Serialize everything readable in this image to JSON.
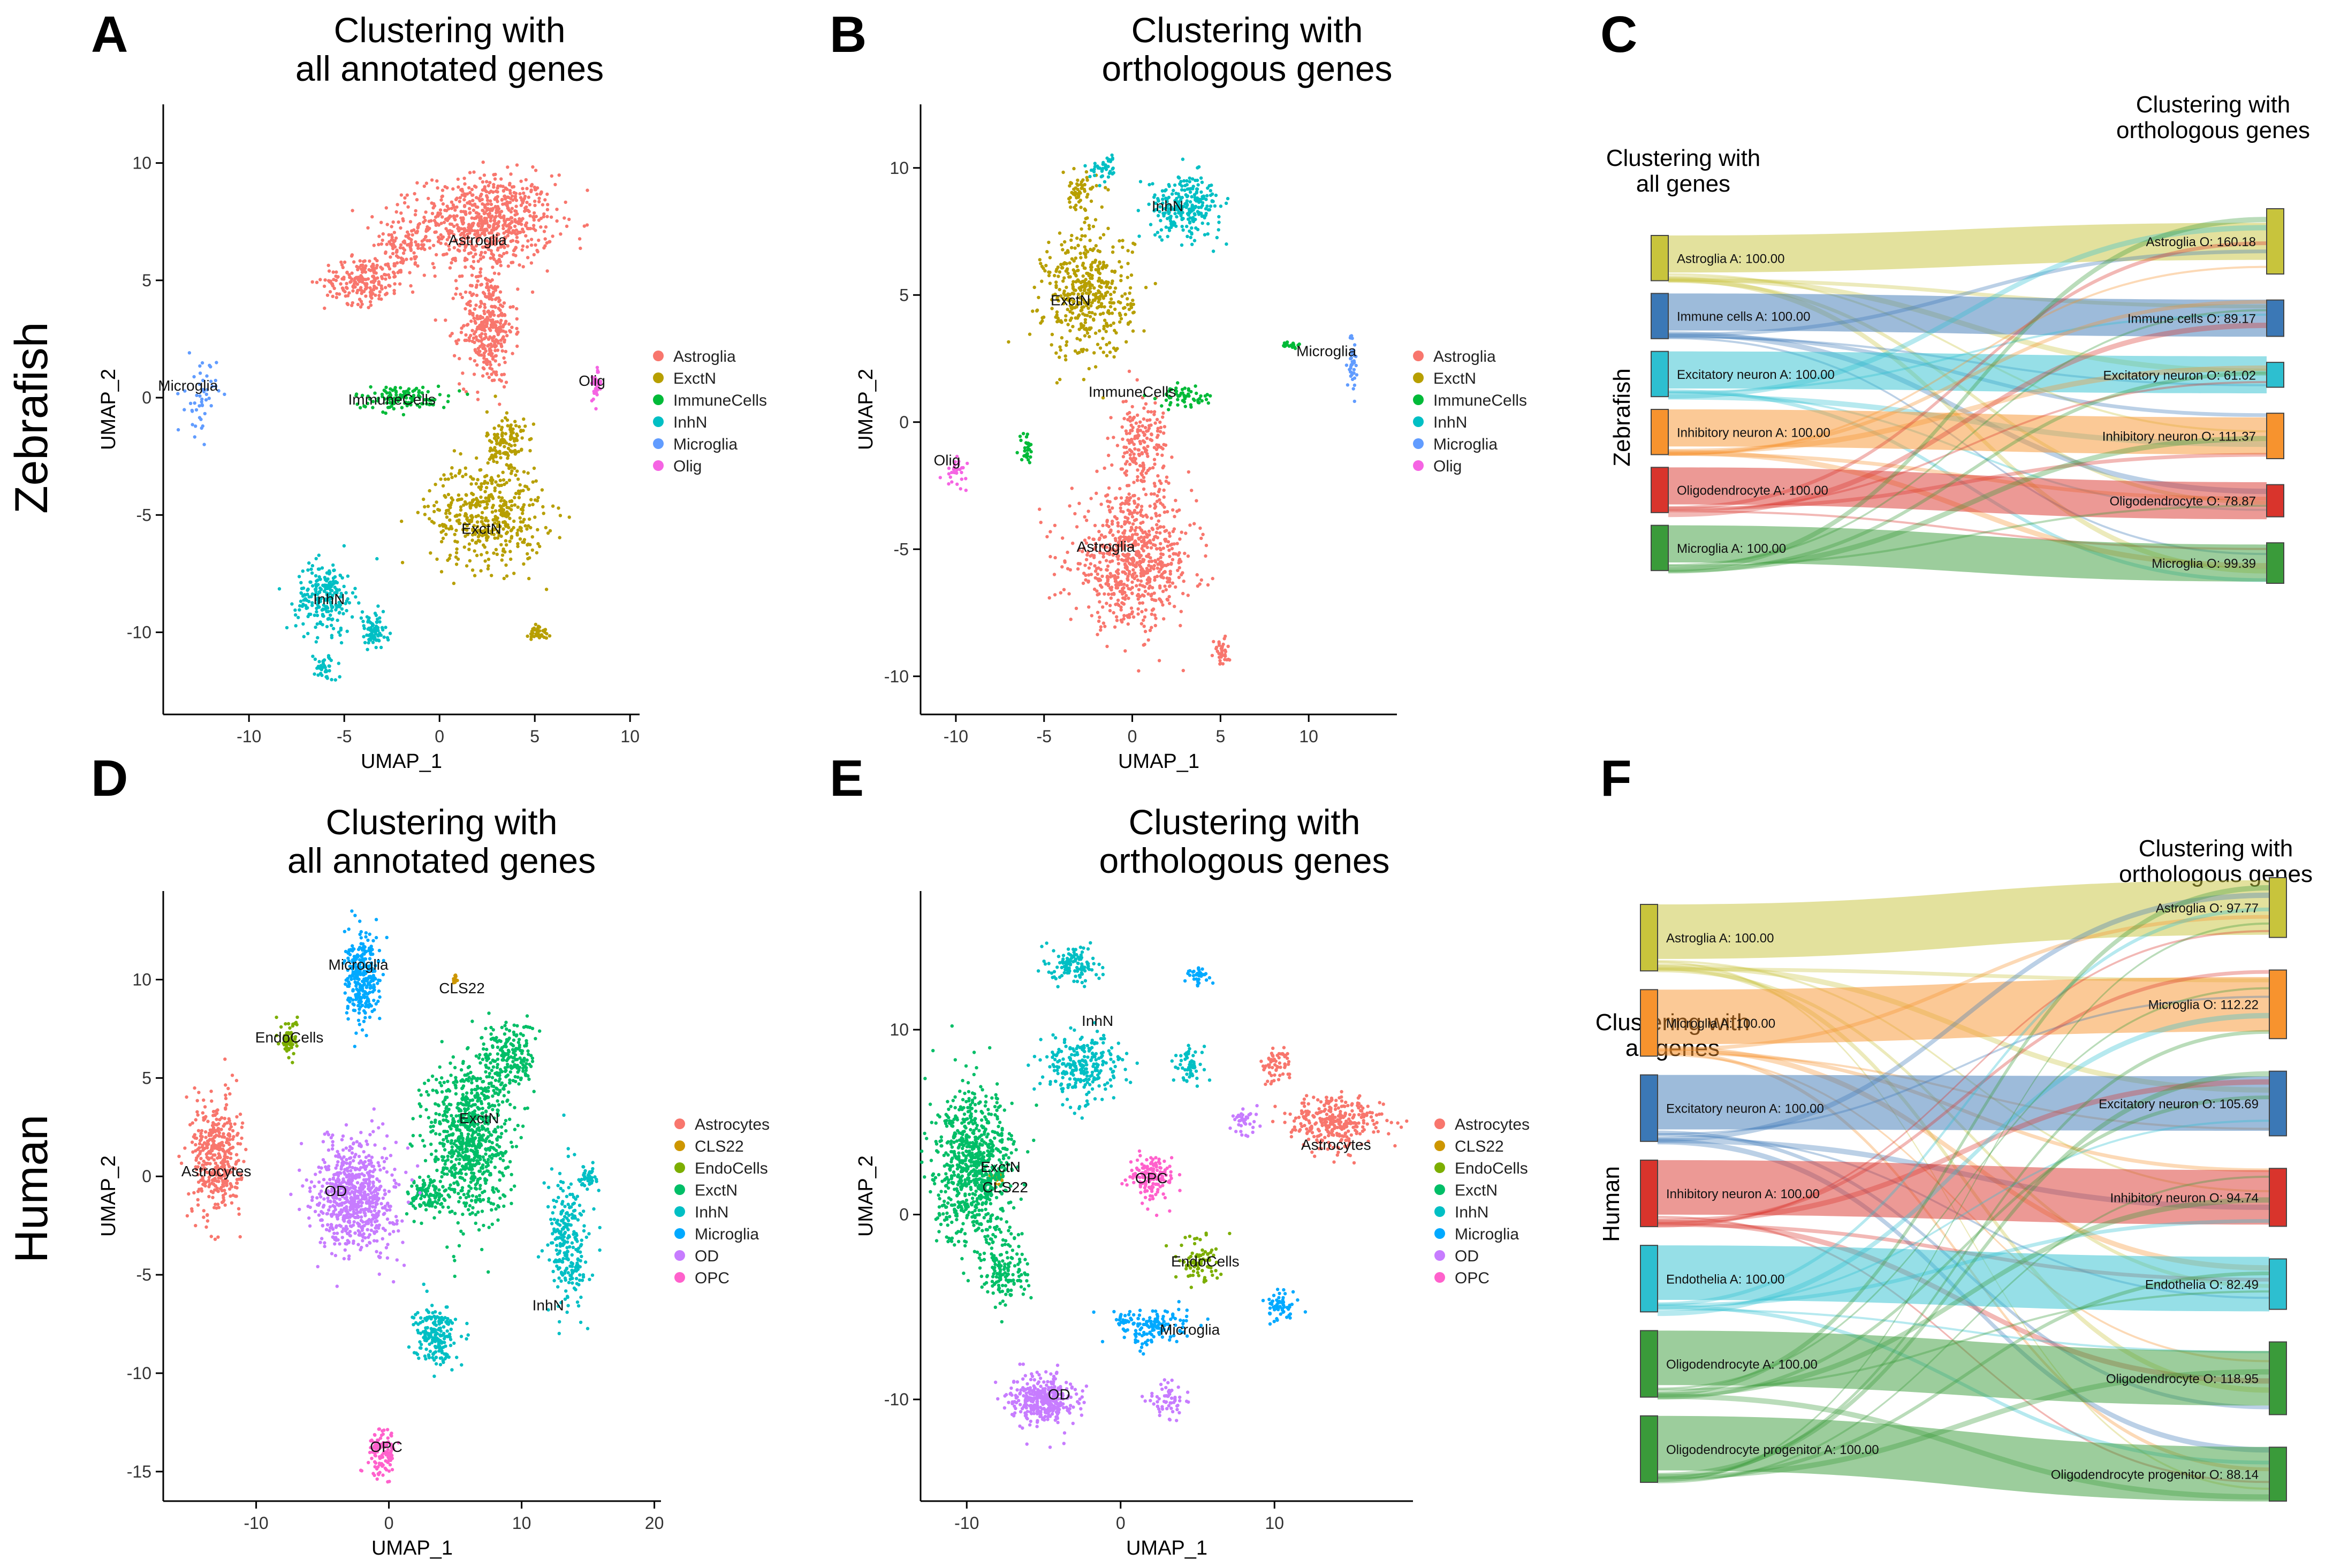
{
  "row_labels": [
    "Zebrafish",
    "Human"
  ],
  "panels": [
    {
      "letter": "A",
      "title": [
        "Clustering with",
        "all annotated genes"
      ]
    },
    {
      "letter": "B",
      "title": [
        "Clustering with",
        "orthologous genes"
      ]
    },
    {
      "letter": "C",
      "title": []
    },
    {
      "letter": "D",
      "title": [
        "Clustering with",
        "all annotated genes"
      ]
    },
    {
      "letter": "E",
      "title": [
        "Clustering with",
        "orthologous genes"
      ]
    },
    {
      "letter": "F",
      "title": []
    }
  ],
  "colors": {
    "Astroglia": "#F8766D",
    "ExctN": "#B79F00",
    "ImmuneCells": "#00BA38",
    "InhN": "#00BFC4",
    "Microglia": "#619CFF",
    "Olig": "#F564E3",
    "Astrocytes": "#F8766D",
    "CLS22": "#CD9600",
    "EndoCells": "#7CAE00",
    "ExctN_h": "#00BE67",
    "InhN_h": "#00BFC4",
    "Microglia_h": "#00A9FF",
    "OD": "#C77CFF",
    "OPC": "#FF61CC"
  },
  "chart_data": [
    {
      "id": "A",
      "type": "scatter",
      "xlabel": "UMAP_1",
      "ylabel": "UMAP_2",
      "xlim": [
        -14.5,
        10.5
      ],
      "ylim": [
        -13.5,
        12.5
      ],
      "xticks": [
        -10,
        -5,
        0,
        5,
        10
      ],
      "yticks": [
        -10,
        -5,
        0,
        5,
        10
      ],
      "legend": [
        "Astroglia",
        "ExctN",
        "ImmuneCells",
        "InhN",
        "Microglia",
        "Olig"
      ],
      "legend_colors": [
        "#F8766D",
        "#B79F00",
        "#00BA38",
        "#00BFC4",
        "#619CFF",
        "#F564E3"
      ],
      "clusters": [
        {
          "name": "Astroglia",
          "color": "#F8766D",
          "blobs": [
            [
              2.5,
              7.5,
              3.5,
              2.0,
              700
            ],
            [
              2.5,
              3.0,
              1.4,
              2.5,
              350
            ],
            [
              -4.0,
              5.0,
              2.0,
              1.0,
              200
            ],
            [
              -2.0,
              6.5,
              1.5,
              1.5,
              120
            ]
          ]
        },
        {
          "name": "ExctN",
          "color": "#B79F00",
          "blobs": [
            [
              2.5,
              -5.0,
              3.0,
              2.2,
              450
            ],
            [
              3.5,
              -2.0,
              1.0,
              1.5,
              120
            ],
            [
              5.2,
              -10.0,
              0.5,
              0.4,
              40
            ]
          ]
        },
        {
          "name": "ImmuneCells",
          "color": "#00BA38",
          "blobs": [
            [
              -2.0,
              0.0,
              2.5,
              0.5,
              120
            ]
          ]
        },
        {
          "name": "InhN",
          "color": "#00BFC4",
          "blobs": [
            [
              -6.0,
              -8.5,
              1.5,
              1.5,
              220
            ],
            [
              -3.5,
              -10.0,
              0.8,
              0.8,
              80
            ],
            [
              -6.0,
              -11.5,
              0.6,
              0.6,
              40
            ]
          ]
        },
        {
          "name": "Microglia",
          "color": "#619CFF",
          "blobs": [
            [
              -12.5,
              0.0,
              0.8,
              1.6,
              50
            ]
          ]
        },
        {
          "name": "Olig",
          "color": "#F564E3",
          "blobs": [
            [
              8.2,
              0.5,
              0.3,
              0.8,
              30
            ]
          ]
        }
      ],
      "labels": [
        {
          "text": "Astroglia",
          "x": 2.0,
          "y": 6.5
        },
        {
          "text": "Microglia",
          "x": -13.2,
          "y": 0.3
        },
        {
          "text": "ImmuneCells",
          "x": -2.5,
          "y": -0.3
        },
        {
          "text": "Olig",
          "x": 8.0,
          "y": 0.5
        },
        {
          "text": "ExctN",
          "x": 2.2,
          "y": -5.8
        },
        {
          "text": "InhN",
          "x": -5.8,
          "y": -8.8
        }
      ]
    },
    {
      "id": "B",
      "type": "scatter",
      "xlabel": "UMAP_1",
      "ylabel": "UMAP_2",
      "xlim": [
        -12,
        15
      ],
      "ylim": [
        -11.5,
        12.5
      ],
      "xticks": [
        -10,
        -5,
        0,
        5,
        10
      ],
      "yticks": [
        -10,
        -5,
        0,
        5,
        10
      ],
      "legend": [
        "Astroglia",
        "ExctN",
        "ImmuneCells",
        "InhN",
        "Microglia",
        "Olig"
      ],
      "legend_colors": [
        "#F8766D",
        "#B79F00",
        "#00BA38",
        "#00BFC4",
        "#619CFF",
        "#F564E3"
      ],
      "clusters": [
        {
          "name": "Astroglia",
          "color": "#F8766D",
          "blobs": [
            [
              0.0,
              -5.5,
              3.5,
              2.5,
              700
            ],
            [
              0.5,
              -1.0,
              1.5,
              2.0,
              200
            ],
            [
              5.0,
              -9.0,
              0.5,
              0.6,
              40
            ]
          ]
        },
        {
          "name": "ExctN",
          "color": "#B79F00",
          "blobs": [
            [
              -2.5,
              5.0,
              2.5,
              2.5,
              450
            ],
            [
              -3.0,
              9.0,
              1.0,
              0.8,
              60
            ]
          ]
        },
        {
          "name": "ImmuneCells",
          "color": "#00BA38",
          "blobs": [
            [
              3.0,
              1.0,
              1.5,
              0.4,
              60
            ],
            [
              -6.0,
              -1.0,
              0.4,
              0.6,
              30
            ],
            [
              9.0,
              3.0,
              0.6,
              0.2,
              20
            ]
          ]
        },
        {
          "name": "InhN",
          "color": "#00BFC4",
          "blobs": [
            [
              3.0,
              8.5,
              2.0,
              1.2,
              250
            ],
            [
              -1.5,
              10.0,
              0.8,
              0.5,
              40
            ]
          ]
        },
        {
          "name": "Microglia",
          "color": "#619CFF",
          "blobs": [
            [
              12.5,
              2.5,
              0.3,
              1.2,
              40
            ]
          ]
        },
        {
          "name": "Olig",
          "color": "#F564E3",
          "blobs": [
            [
              -10.0,
              -2.0,
              0.6,
              0.5,
              30
            ]
          ]
        }
      ],
      "labels": [
        {
          "text": "InhN",
          "x": 2.0,
          "y": 8.3
        },
        {
          "text": "ExctN",
          "x": -3.5,
          "y": 4.6
        },
        {
          "text": "Microglia",
          "x": 11.0,
          "y": 2.6
        },
        {
          "text": "ImmuneCells",
          "x": 0.0,
          "y": 1.0
        },
        {
          "text": "Olig",
          "x": -10.5,
          "y": -1.7
        },
        {
          "text": "Astroglia",
          "x": -1.5,
          "y": -5.1
        }
      ]
    },
    {
      "id": "D",
      "type": "scatter",
      "xlabel": "UMAP_1",
      "ylabel": "UMAP_2",
      "xlim": [
        -17,
        20.5
      ],
      "ylim": [
        -16.5,
        14.5
      ],
      "xticks": [
        -10,
        0,
        10,
        20
      ],
      "yticks": [
        -15,
        -10,
        -5,
        0,
        5,
        10
      ],
      "legend": [
        "Astrocytes",
        "CLS22",
        "EndoCells",
        "ExctN",
        "InhN",
        "Microglia",
        "OD",
        "OPC"
      ],
      "legend_colors": [
        "#F8766D",
        "#CD9600",
        "#7CAE00",
        "#00BE67",
        "#00BFC4",
        "#00A9FF",
        "#C77CFF",
        "#FF61CC"
      ],
      "clusters": [
        {
          "name": "Astrocytes",
          "color": "#F8766D",
          "blobs": [
            [
              -13.0,
              1.0,
              1.8,
              3.0,
              400
            ]
          ]
        },
        {
          "name": "CLS22",
          "color": "#CD9600",
          "blobs": [
            [
              5.0,
              10.0,
              0.2,
              0.3,
              15
            ]
          ]
        },
        {
          "name": "EndoCells",
          "color": "#7CAE00",
          "blobs": [
            [
              -7.5,
              7.0,
              0.6,
              1.0,
              60
            ]
          ]
        },
        {
          "name": "ExctN",
          "color": "#00BE67",
          "blobs": [
            [
              6.0,
              2.0,
              3.0,
              4.0,
              800
            ],
            [
              9.0,
              6.0,
              2.0,
              1.8,
              200
            ],
            [
              3.0,
              -1.0,
              1.5,
              1.0,
              100
            ]
          ]
        },
        {
          "name": "InhN",
          "color": "#00BFC4",
          "blobs": [
            [
              13.5,
              -3.5,
              1.5,
              3.5,
              250
            ],
            [
              3.5,
              -8.0,
              1.5,
              1.5,
              200
            ],
            [
              15.0,
              0.0,
              0.6,
              0.5,
              40
            ]
          ]
        },
        {
          "name": "Microglia",
          "color": "#00A9FF",
          "blobs": [
            [
              -2.0,
              10.0,
              1.3,
              2.2,
              300
            ]
          ]
        },
        {
          "name": "OD",
          "color": "#C77CFF",
          "blobs": [
            [
              -2.5,
              -1.0,
              3.0,
              2.8,
              700
            ]
          ]
        },
        {
          "name": "OPC",
          "color": "#FF61CC",
          "blobs": [
            [
              -0.5,
              -14.0,
              1.0,
              1.2,
              120
            ]
          ]
        }
      ],
      "labels": [
        {
          "text": "Microglia",
          "x": -2.3,
          "y": 10.5
        },
        {
          "text": "CLS22",
          "x": 5.5,
          "y": 9.3
        },
        {
          "text": "EndoCells",
          "x": -7.5,
          "y": 6.8
        },
        {
          "text": "ExctN",
          "x": 6.8,
          "y": 2.7
        },
        {
          "text": "Astrocytes",
          "x": -13.0,
          "y": 0.0
        },
        {
          "text": "OD",
          "x": -4.0,
          "y": -1.0
        },
        {
          "text": "InhN",
          "x": 12.0,
          "y": -6.8
        },
        {
          "text": "OPC",
          "x": -0.2,
          "y": -14.0
        }
      ]
    },
    {
      "id": "E",
      "type": "scatter",
      "xlabel": "UMAP_1",
      "ylabel": "UMAP_2",
      "xlim": [
        -13,
        19
      ],
      "ylim": [
        -15.5,
        17.5
      ],
      "xticks": [
        -10,
        0,
        10
      ],
      "yticks": [
        -10,
        0,
        10
      ],
      "legend": [
        "Astrocytes",
        "CLS22",
        "EndoCells",
        "ExctN",
        "InhN",
        "Microglia",
        "OD",
        "OPC"
      ],
      "legend_colors": [
        "#F8766D",
        "#CD9600",
        "#7CAE00",
        "#00BE67",
        "#00BFC4",
        "#00A9FF",
        "#C77CFF",
        "#FF61CC"
      ],
      "clusters": [
        {
          "name": "Astrocytes",
          "color": "#F8766D",
          "blobs": [
            [
              14.0,
              5.0,
              3.0,
              1.5,
              300
            ],
            [
              10.0,
              8.0,
              1.0,
              1.0,
              60
            ]
          ]
        },
        {
          "name": "CLS22",
          "color": "#CD9600",
          "blobs": [
            [
              -8.0,
              2.0,
              0.5,
              0.4,
              20
            ]
          ]
        },
        {
          "name": "EndoCells",
          "color": "#7CAE00",
          "blobs": [
            [
              5.0,
              -2.5,
              1.5,
              1.2,
              80
            ]
          ]
        },
        {
          "name": "ExctN",
          "color": "#00BE67",
          "blobs": [
            [
              -9.5,
              2.5,
              2.5,
              4.0,
              800
            ],
            [
              -7.5,
              -3.0,
              1.5,
              2.0,
              150
            ]
          ]
        },
        {
          "name": "InhN",
          "color": "#00BFC4",
          "blobs": [
            [
              -2.5,
              8.0,
              2.5,
              1.8,
              250
            ],
            [
              -3.0,
              13.5,
              1.5,
              1.0,
              120
            ],
            [
              4.5,
              8.0,
              1.0,
              1.0,
              60
            ]
          ]
        },
        {
          "name": "Microglia",
          "color": "#00A9FF",
          "blobs": [
            [
              2.0,
              -6.0,
              2.5,
              1.0,
              150
            ],
            [
              10.5,
              -5.0,
              1.0,
              0.8,
              60
            ],
            [
              5.0,
              13.0,
              0.8,
              0.5,
              40
            ]
          ]
        },
        {
          "name": "OD",
          "color": "#C77CFF",
          "blobs": [
            [
              -5.0,
              -10.0,
              2.0,
              1.3,
              350
            ],
            [
              3.0,
              -10.0,
              1.2,
              1.0,
              60
            ],
            [
              8.0,
              5.0,
              0.8,
              0.8,
              40
            ]
          ]
        },
        {
          "name": "OPC",
          "color": "#FF61CC",
          "blobs": [
            [
              2.0,
              2.0,
              1.5,
              1.2,
              150
            ]
          ]
        }
      ],
      "labels": [
        {
          "text": "InhN",
          "x": -1.5,
          "y": 10.2
        },
        {
          "text": "ExctN",
          "x": -7.8,
          "y": 2.3
        },
        {
          "text": "CLS22",
          "x": -7.5,
          "y": 1.2
        },
        {
          "text": "OPC",
          "x": 2.0,
          "y": 1.7
        },
        {
          "text": "Astrocytes",
          "x": 14.0,
          "y": 3.5
        },
        {
          "text": "EndoCells",
          "x": 5.5,
          "y": -2.8
        },
        {
          "text": "Microglia",
          "x": 4.5,
          "y": -6.5
        },
        {
          "text": "OD",
          "x": -4.0,
          "y": -10.0
        }
      ]
    }
  ],
  "sankeys": [
    {
      "id": "C",
      "left_title": [
        "Clustering with",
        "all genes"
      ],
      "right_title": [
        "Clustering with",
        "orthologous genes"
      ],
      "side_label": "Zebrafish",
      "left_nodes": [
        {
          "label": "Astroglia A: 100.00",
          "color": "#C8C43C"
        },
        {
          "label": "Immune cells A: 100.00",
          "color": "#3B78B6"
        },
        {
          "label": "Excitatory neuron A: 100.00",
          "color": "#2DBFD0"
        },
        {
          "label": "Inhibitory neuron A: 100.00",
          "color": "#F7932E"
        },
        {
          "label": "Oligodendrocyte A: 100.00",
          "color": "#D9342C"
        },
        {
          "label": "Microglia A: 100.00",
          "color": "#3A9B3A"
        }
      ],
      "right_nodes": [
        {
          "label": "Astroglia O: 160.18",
          "color": "#C8C43C",
          "value": 160.18
        },
        {
          "label": "Immune cells O: 89.17",
          "color": "#3B78B6",
          "value": 89.17
        },
        {
          "label": "Excitatory neuron O: 61.02",
          "color": "#2DBFD0",
          "value": 61.02
        },
        {
          "label": "Inhibitory neuron O: 111.37",
          "color": "#F7932E",
          "value": 111.37
        },
        {
          "label": "Oligodendrocyte O: 78.87",
          "color": "#D9342C",
          "value": 78.87
        },
        {
          "label": "Microglia O: 99.39",
          "color": "#3A9B3A",
          "value": 99.39
        }
      ]
    },
    {
      "id": "F",
      "left_title": [
        "Clustering with",
        "all genes"
      ],
      "right_title": [
        "Clustering with",
        "orthologous genes"
      ],
      "side_label": "Human",
      "left_nodes": [
        {
          "label": "Astroglia A: 100.00",
          "color": "#C8C43C"
        },
        {
          "label": "Microglia A: 100.00",
          "color": "#F7932E"
        },
        {
          "label": "Excitatory neuron A: 100.00",
          "color": "#3B78B6"
        },
        {
          "label": "Inhibitory neuron A: 100.00",
          "color": "#D9342C"
        },
        {
          "label": "Endothelia A: 100.00",
          "color": "#2DBFD0"
        },
        {
          "label": "Oligodendrocyte A: 100.00",
          "color": "#3A9B3A"
        },
        {
          "label": "Oligodendrocyte progenitor A: 100.00",
          "color": "#3A9B3A"
        }
      ],
      "right_nodes": [
        {
          "label": "Astroglia O: 97.77",
          "color": "#C8C43C",
          "value": 97.77
        },
        {
          "label": "Microglia O: 112.22",
          "color": "#F7932E",
          "value": 112.22
        },
        {
          "label": "Excitatory neuron O: 105.69",
          "color": "#3B78B6",
          "value": 105.69
        },
        {
          "label": "Inhibitory neuron O: 94.74",
          "color": "#D9342C",
          "value": 94.74
        },
        {
          "label": "Endothelia O: 82.49",
          "color": "#2DBFD0",
          "value": 82.49
        },
        {
          "label": "Oligodendrocyte O: 118.95",
          "color": "#3A9B3A",
          "value": 118.95
        },
        {
          "label": "Oligodendrocyte progenitor O: 88.14",
          "color": "#3A9B3A",
          "value": 88.14
        }
      ]
    }
  ]
}
